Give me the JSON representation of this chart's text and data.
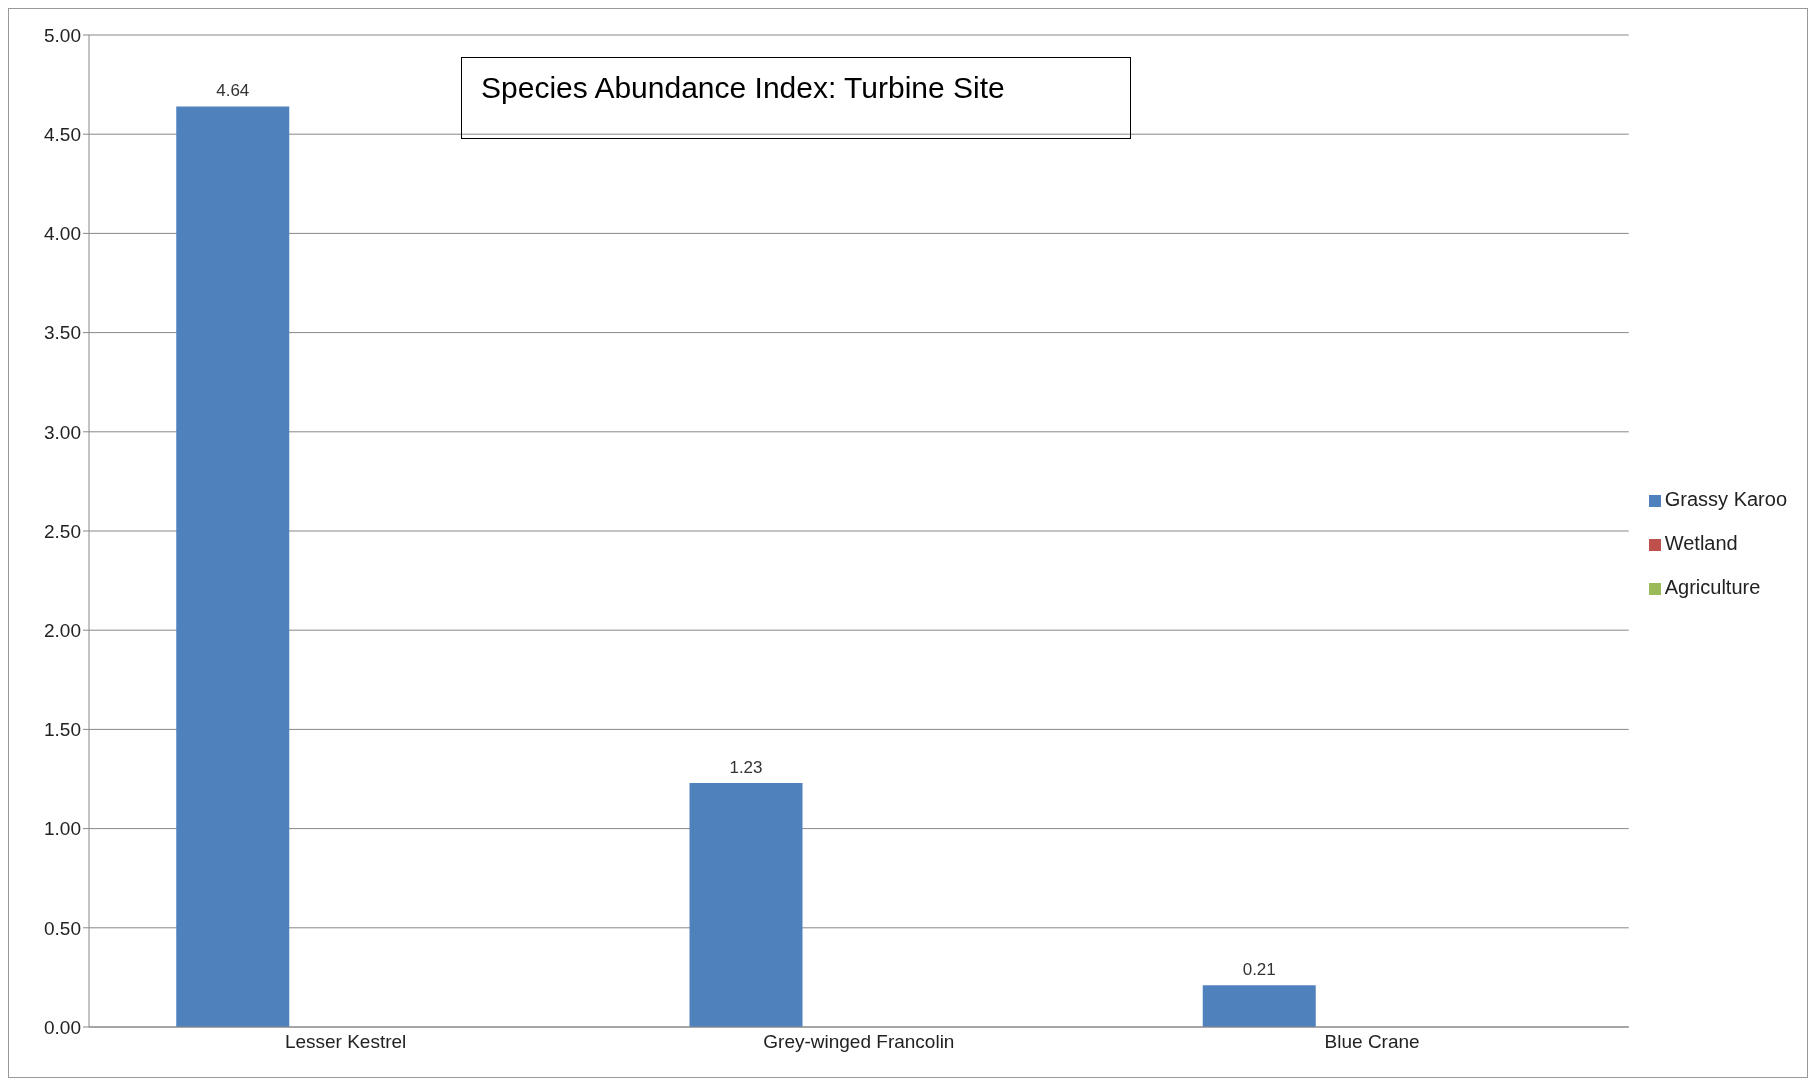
{
  "chart_data": {
    "type": "bar",
    "title": "Species Abundance Index: Turbine Site",
    "categories": [
      "Lesser Kestrel",
      "Grey-winged Francolin",
      "Blue Crane"
    ],
    "series": [
      {
        "name": "Grassy Karoo",
        "color": "#4f81bd",
        "values": [
          4.64,
          1.23,
          0.21
        ]
      },
      {
        "name": "Wetland",
        "color": "#c0504d",
        "values": [
          null,
          null,
          null
        ]
      },
      {
        "name": "Agriculture",
        "color": "#9bbb59",
        "values": [
          null,
          null,
          null
        ]
      }
    ],
    "ylim": [
      0,
      5
    ],
    "yticks": [
      {
        "value": 0,
        "label": "0.00"
      },
      {
        "value": 0.5,
        "label": "0.50"
      },
      {
        "value": 1,
        "label": "1.00"
      },
      {
        "value": 1.5,
        "label": "1.50"
      },
      {
        "value": 2,
        "label": "2.00"
      },
      {
        "value": 2.5,
        "label": "2.50"
      },
      {
        "value": 3,
        "label": "3.00"
      },
      {
        "value": 3.5,
        "label": "3.50"
      },
      {
        "value": 4,
        "label": "4.00"
      },
      {
        "value": 4.5,
        "label": "4.50"
      },
      {
        "value": 5,
        "label": "5.00"
      }
    ],
    "grid": "y",
    "legend": "right",
    "data_labels": true
  }
}
